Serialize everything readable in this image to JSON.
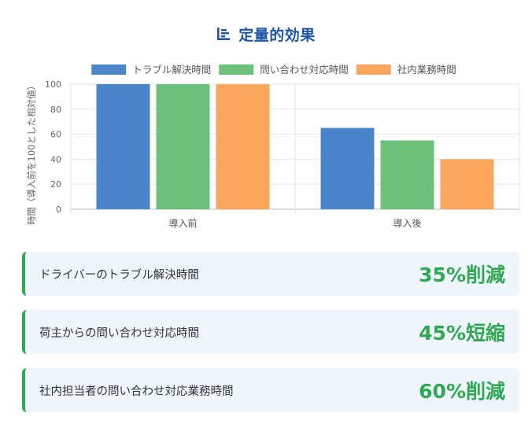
{
  "header": {
    "title": "定量的効果",
    "icon": "bar-list-icon",
    "icon_color": "#1e55a5"
  },
  "chart_data": {
    "type": "bar",
    "categories": [
      "導入前",
      "導入後"
    ],
    "series": [
      {
        "name": "トラブル解決時間",
        "values": [
          100,
          65
        ],
        "color": "#4a84c9"
      },
      {
        "name": "問い合わせ対応時間",
        "values": [
          100,
          55
        ],
        "color": "#6bc17a"
      },
      {
        "name": "社内業務時間",
        "values": [
          100,
          40
        ],
        "color": "#fca55c"
      }
    ],
    "ylabel": "時間（導入前を100とした相対値）",
    "xlabel": "",
    "ylim": [
      0,
      100
    ],
    "yticks": [
      0,
      20,
      40,
      60,
      80,
      100
    ],
    "grid": true,
    "legend": "top-center"
  },
  "effects": [
    {
      "label": "ドライバーのトラブル解決時間",
      "value": "35%削減"
    },
    {
      "label": "荷主からの問い合わせ対応時間",
      "value": "45%短縮"
    },
    {
      "label": "社内担当者の問い合わせ対応業務時間",
      "value": "60%削減"
    }
  ],
  "accent_color": "#2fa84f"
}
